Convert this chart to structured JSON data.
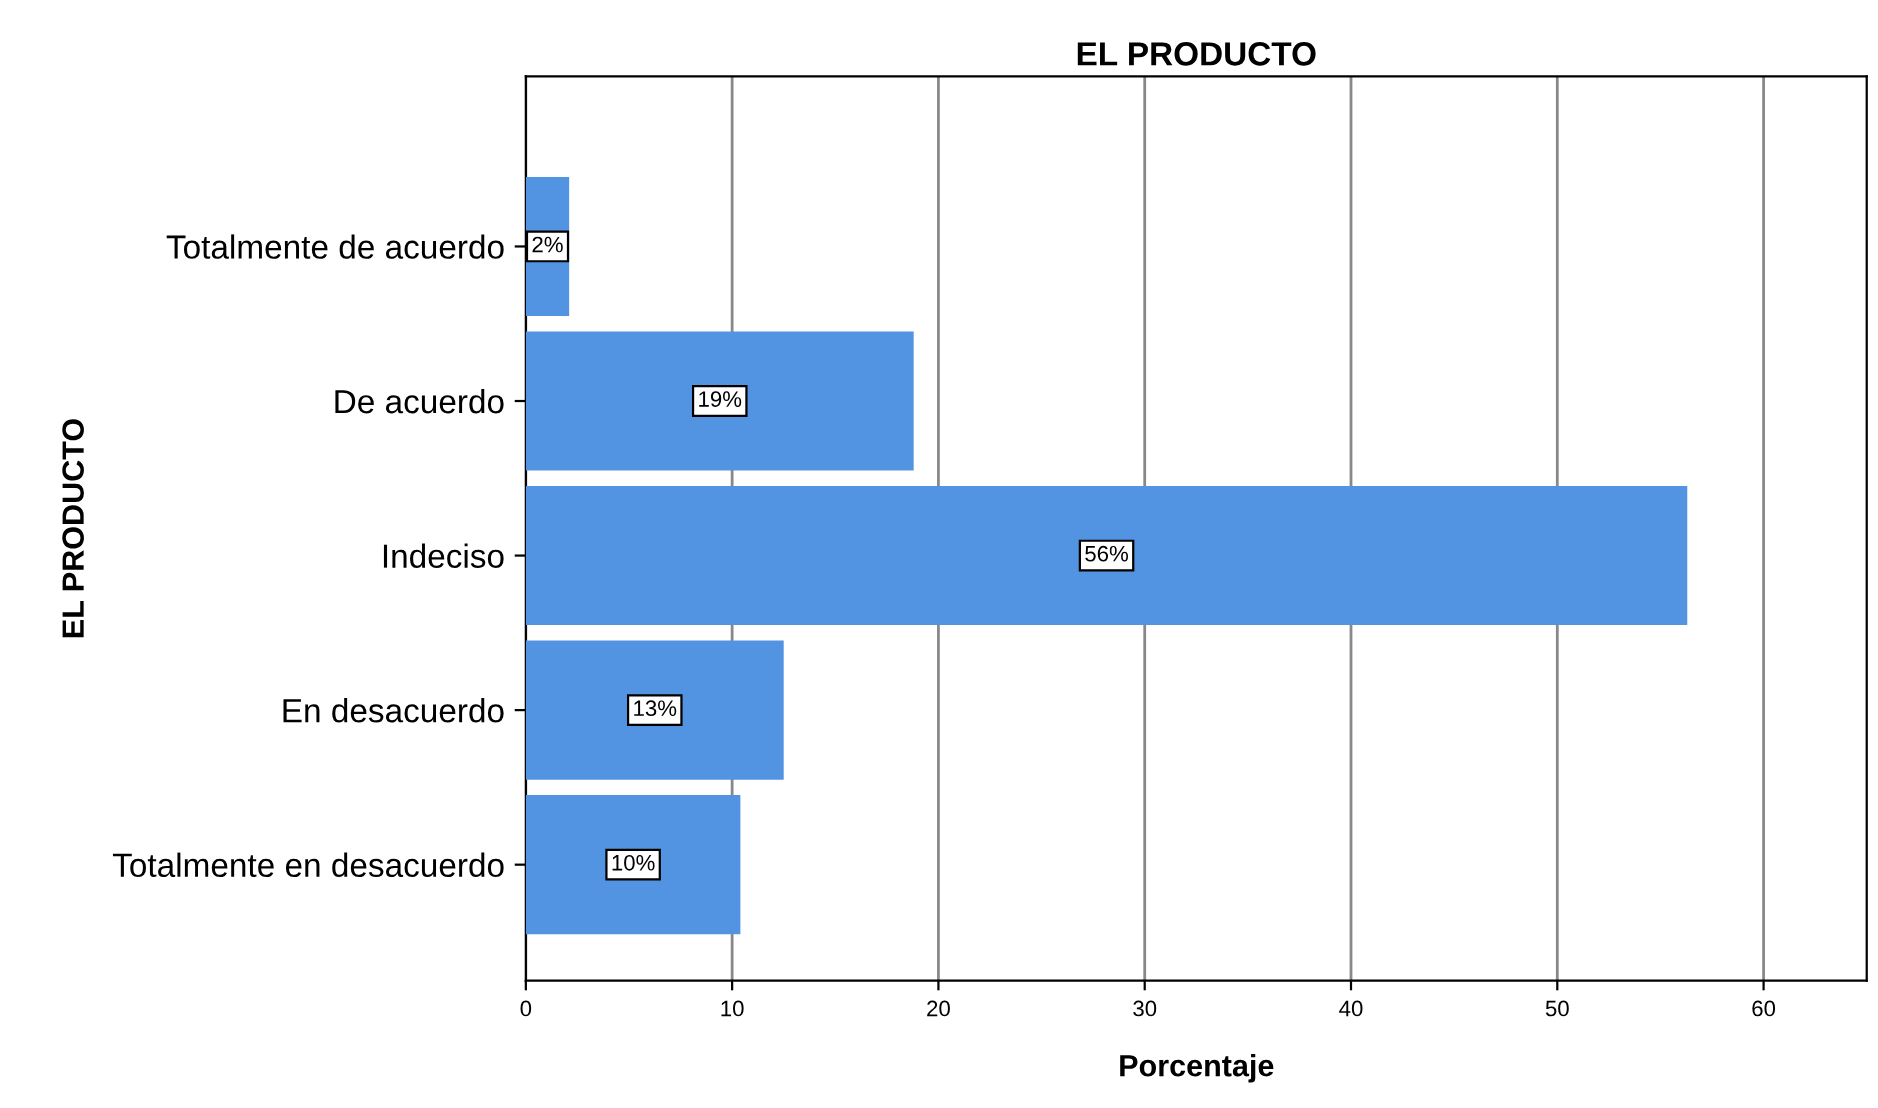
{
  "chart_data": {
    "type": "bar",
    "orientation": "horizontal",
    "title": "EL PRODUCTO",
    "xlabel": "Porcentaje",
    "ylabel": "EL PRODUCTO",
    "categories": [
      "Totalmente de acuerdo",
      "De acuerdo",
      "Indeciso",
      "En desacuerdo",
      "Totalmente en desacuerdo"
    ],
    "values": [
      2.1,
      18.8,
      56.3,
      12.5,
      10.4
    ],
    "value_labels": [
      "2%",
      "19%",
      "56%",
      "13%",
      "10%"
    ],
    "color": "#5294e2",
    "xlim": [
      0,
      65
    ],
    "xticks": [
      0,
      10,
      20,
      30,
      40,
      50,
      60
    ],
    "grid": "x",
    "legend": false
  }
}
